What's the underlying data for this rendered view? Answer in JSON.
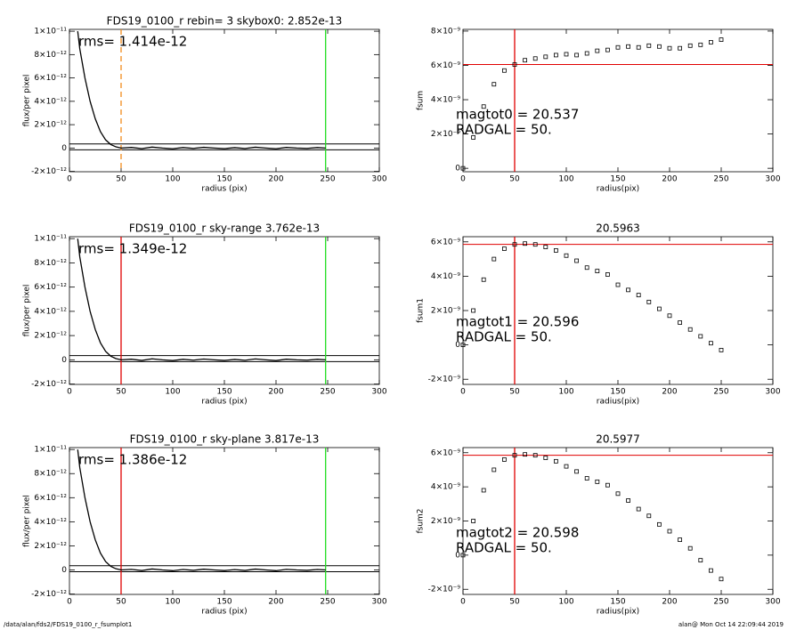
{
  "chart_data": [
    {
      "type": "line",
      "title": "FDS19_0100_r rebin= 3    skybox0:  2.852e-13",
      "xlabel": "radius (pix)",
      "ylabel": "flux/per pixel",
      "annotations": [
        "rms= 1.414e-12"
      ],
      "xlim": [
        0,
        300
      ],
      "xticks": [
        0,
        50,
        100,
        150,
        200,
        250,
        300
      ],
      "ylim": [
        -2.03e-12,
        1.016e-11
      ],
      "yticks": [
        {
          "value": -2e-12,
          "label": "-2×10⁻¹²"
        },
        0,
        {
          "value": 2e-12,
          "label": "2×10⁻¹²"
        },
        {
          "value": 4e-12,
          "label": "4×10⁻¹²"
        },
        {
          "value": 6e-12,
          "label": "6×10⁻¹²"
        },
        {
          "value": 8e-12,
          "label": "8×10⁻¹²"
        },
        {
          "value": 1e-11,
          "label": "1×10⁻¹¹"
        }
      ],
      "x": [
        8,
        10,
        15,
        20,
        25,
        30,
        35,
        40,
        45,
        50,
        60,
        70,
        80,
        90,
        100,
        110,
        120,
        130,
        140,
        150,
        160,
        170,
        180,
        190,
        200,
        210,
        220,
        230,
        240,
        248
      ],
      "series": [
        {
          "color": "#000000",
          "values": [
            1e-11,
            8.5e-12,
            6e-12,
            4e-12,
            2.5e-12,
            1.4e-12,
            7e-13,
            3e-13,
            1e-13,
            0,
            5e-14,
            -5e-14,
            8e-14,
            0,
            -6e-14,
            4e-14,
            -3e-14,
            6e-14,
            0,
            -5e-14,
            3e-14,
            -4e-14,
            7e-14,
            0,
            -6e-14,
            5e-14,
            0,
            -3e-14,
            4e-14,
            0
          ]
        }
      ],
      "hlines": [
        {
          "value": 3.5e-13,
          "color": "#000000"
        },
        {
          "value": -1.5e-13,
          "color": "#000000"
        }
      ],
      "vlines": [
        {
          "value": 50,
          "color": "#f08a1a",
          "dash": true
        },
        {
          "value": 248,
          "color": "#22dd22"
        }
      ]
    },
    {
      "type": "scatter",
      "xlabel": "radius(pix)",
      "ylabel": "fsum",
      "annotations": [
        "magtot0 =  20.537",
        "RADGAL =     50."
      ],
      "xlim": [
        0,
        300
      ],
      "xticks": [
        0,
        50,
        100,
        150,
        200,
        250,
        300
      ],
      "ylim": [
        -2e-10,
        8.1e-09
      ],
      "yticks": [
        0,
        {
          "value": 2e-09,
          "label": "2×10⁻⁹"
        },
        {
          "value": 4e-09,
          "label": "4×10⁻⁹"
        },
        {
          "value": 6e-09,
          "label": "6×10⁻⁹"
        },
        {
          "value": 8e-09,
          "label": "8×10⁻⁹"
        }
      ],
      "x": [
        0,
        10,
        20,
        30,
        40,
        50,
        60,
        70,
        80,
        90,
        100,
        110,
        120,
        130,
        140,
        150,
        160,
        170,
        180,
        190,
        200,
        210,
        220,
        230,
        240,
        250
      ],
      "series": [
        {
          "color": "#000000",
          "values": [
            0,
            1.8e-09,
            3.6e-09,
            4.9e-09,
            5.7e-09,
            6.05e-09,
            6.3e-09,
            6.4e-09,
            6.5e-09,
            6.6e-09,
            6.65e-09,
            6.6e-09,
            6.7e-09,
            6.85e-09,
            6.9e-09,
            7.05e-09,
            7.1e-09,
            7.05e-09,
            7.15e-09,
            7.1e-09,
            7e-09,
            7e-09,
            7.15e-09,
            7.2e-09,
            7.35e-09,
            7.5e-09
          ]
        }
      ],
      "hlines": [
        {
          "value": 6.05e-09,
          "color": "#e00000"
        }
      ],
      "vlines": [
        {
          "value": 50,
          "color": "#e00000"
        }
      ]
    },
    {
      "type": "line",
      "title": "FDS19_0100_r sky-range  3.762e-13",
      "xlabel": "radius (pix)",
      "ylabel": "flux/per pixel",
      "annotations": [
        "rms= 1.349e-12"
      ],
      "xlim": [
        0,
        300
      ],
      "xticks": [
        0,
        50,
        100,
        150,
        200,
        250,
        300
      ],
      "ylim": [
        -2.03e-12,
        1.016e-11
      ],
      "yticks": [
        {
          "value": -2e-12,
          "label": "-2×10⁻¹²"
        },
        0,
        {
          "value": 2e-12,
          "label": "2×10⁻¹²"
        },
        {
          "value": 4e-12,
          "label": "4×10⁻¹²"
        },
        {
          "value": 6e-12,
          "label": "6×10⁻¹²"
        },
        {
          "value": 8e-12,
          "label": "8×10⁻¹²"
        },
        {
          "value": 1e-11,
          "label": "1×10⁻¹¹"
        }
      ],
      "x": [
        8,
        10,
        15,
        20,
        25,
        30,
        35,
        40,
        45,
        50,
        60,
        70,
        80,
        90,
        100,
        110,
        120,
        130,
        140,
        150,
        160,
        170,
        180,
        190,
        200,
        210,
        220,
        230,
        240,
        248
      ],
      "series": [
        {
          "color": "#000000",
          "values": [
            1e-11,
            8.5e-12,
            6e-12,
            4e-12,
            2.5e-12,
            1.4e-12,
            7e-13,
            3e-13,
            1e-13,
            0,
            5e-14,
            -5e-14,
            8e-14,
            0,
            -6e-14,
            4e-14,
            -3e-14,
            6e-14,
            0,
            -5e-14,
            3e-14,
            -4e-14,
            7e-14,
            0,
            -6e-14,
            5e-14,
            0,
            -3e-14,
            4e-14,
            0
          ]
        }
      ],
      "hlines": [
        {
          "value": 3.5e-13,
          "color": "#000000"
        },
        {
          "value": -1.5e-13,
          "color": "#000000"
        }
      ],
      "vlines": [
        {
          "value": 50,
          "color": "#e00000"
        },
        {
          "value": 248,
          "color": "#22dd22"
        }
      ]
    },
    {
      "type": "scatter",
      "title": "20.5963",
      "xlabel": "radius(pix)",
      "ylabel": "fsum1",
      "annotations": [
        "magtot1 =  20.596",
        "RADGAL =     50."
      ],
      "xlim": [
        0,
        300
      ],
      "xticks": [
        0,
        50,
        100,
        150,
        200,
        250,
        300
      ],
      "ylim": [
        -2.3e-09,
        6.3e-09
      ],
      "yticks": [
        {
          "value": -2e-09,
          "label": "-2×10⁻⁹"
        },
        0,
        {
          "value": 2e-09,
          "label": "2×10⁻⁹"
        },
        {
          "value": 4e-09,
          "label": "4×10⁻⁹"
        },
        {
          "value": 6e-09,
          "label": "6×10⁻⁹"
        }
      ],
      "x": [
        0,
        10,
        20,
        30,
        40,
        50,
        60,
        70,
        80,
        90,
        100,
        110,
        120,
        130,
        140,
        150,
        160,
        170,
        180,
        190,
        200,
        210,
        220,
        230,
        240,
        250
      ],
      "series": [
        {
          "color": "#000000",
          "values": [
            0,
            2e-09,
            3.8e-09,
            5e-09,
            5.6e-09,
            5.85e-09,
            5.9e-09,
            5.85e-09,
            5.7e-09,
            5.5e-09,
            5.2e-09,
            4.9e-09,
            4.5e-09,
            4.3e-09,
            4.1e-09,
            3.5e-09,
            3.2e-09,
            2.9e-09,
            2.5e-09,
            2.1e-09,
            1.7e-09,
            1.3e-09,
            9e-10,
            5e-10,
            1e-10,
            -3e-10
          ]
        }
      ],
      "hlines": [
        {
          "value": 5.85e-09,
          "color": "#e00000"
        }
      ],
      "vlines": [
        {
          "value": 50,
          "color": "#e00000"
        }
      ]
    },
    {
      "type": "line",
      "title": "FDS19_0100_r sky-plane  3.817e-13",
      "xlabel": "radius (pix)",
      "ylabel": "flux/per pixel",
      "annotations": [
        "rms= 1.386e-12"
      ],
      "xlim": [
        0,
        300
      ],
      "xticks": [
        0,
        50,
        100,
        150,
        200,
        250,
        300
      ],
      "ylim": [
        -2.03e-12,
        1.016e-11
      ],
      "yticks": [
        {
          "value": -2e-12,
          "label": "-2×10⁻¹²"
        },
        0,
        {
          "value": 2e-12,
          "label": "2×10⁻¹²"
        },
        {
          "value": 4e-12,
          "label": "4×10⁻¹²"
        },
        {
          "value": 6e-12,
          "label": "6×10⁻¹²"
        },
        {
          "value": 8e-12,
          "label": "8×10⁻¹²"
        },
        {
          "value": 1e-11,
          "label": "1×10⁻¹¹"
        }
      ],
      "x": [
        8,
        10,
        15,
        20,
        25,
        30,
        35,
        40,
        45,
        50,
        60,
        70,
        80,
        90,
        100,
        110,
        120,
        130,
        140,
        150,
        160,
        170,
        180,
        190,
        200,
        210,
        220,
        230,
        240,
        248
      ],
      "series": [
        {
          "color": "#000000",
          "values": [
            1e-11,
            8.5e-12,
            6e-12,
            4e-12,
            2.5e-12,
            1.4e-12,
            7e-13,
            3e-13,
            1e-13,
            0,
            5e-14,
            -5e-14,
            8e-14,
            0,
            -6e-14,
            4e-14,
            -3e-14,
            6e-14,
            0,
            -5e-14,
            3e-14,
            -4e-14,
            7e-14,
            0,
            -6e-14,
            5e-14,
            0,
            -3e-14,
            4e-14,
            0
          ]
        }
      ],
      "hlines": [
        {
          "value": 3.5e-13,
          "color": "#000000"
        },
        {
          "value": -1.5e-13,
          "color": "#000000"
        }
      ],
      "vlines": [
        {
          "value": 50,
          "color": "#e00000"
        },
        {
          "value": 248,
          "color": "#22dd22"
        }
      ]
    },
    {
      "type": "scatter",
      "title": "20.5977",
      "xlabel": "radius(pix)",
      "ylabel": "fsum2",
      "annotations": [
        "magtot2 =  20.598",
        "RADGAL =     50."
      ],
      "xlim": [
        0,
        300
      ],
      "xticks": [
        0,
        50,
        100,
        150,
        200,
        250,
        300
      ],
      "ylim": [
        -2.3e-09,
        6.3e-09
      ],
      "yticks": [
        {
          "value": -2e-09,
          "label": "-2×10⁻⁹"
        },
        0,
        {
          "value": 2e-09,
          "label": "2×10⁻⁹"
        },
        {
          "value": 4e-09,
          "label": "4×10⁻⁹"
        },
        {
          "value": 6e-09,
          "label": "6×10⁻⁹"
        }
      ],
      "x": [
        0,
        10,
        20,
        30,
        40,
        50,
        60,
        70,
        80,
        90,
        100,
        110,
        120,
        130,
        140,
        150,
        160,
        170,
        180,
        190,
        200,
        210,
        220,
        230,
        240,
        250
      ],
      "series": [
        {
          "color": "#000000",
          "values": [
            0,
            2e-09,
            3.8e-09,
            5e-09,
            5.6e-09,
            5.85e-09,
            5.9e-09,
            5.85e-09,
            5.7e-09,
            5.5e-09,
            5.2e-09,
            4.9e-09,
            4.5e-09,
            4.3e-09,
            4.1e-09,
            3.6e-09,
            3.2e-09,
            2.7e-09,
            2.3e-09,
            1.8e-09,
            1.4e-09,
            9e-10,
            4e-10,
            -3e-10,
            -9e-10,
            -1.4e-09
          ]
        }
      ],
      "hlines": [
        {
          "value": 5.85e-09,
          "color": "#e00000"
        }
      ],
      "vlines": [
        {
          "value": 50,
          "color": "#e00000"
        }
      ]
    }
  ],
  "footer": {
    "left": "/data/alan/fds2/FDS19_0100_r_fsumplot1",
    "right": "alan@  Mon Oct 14 22:09:44 2019"
  }
}
